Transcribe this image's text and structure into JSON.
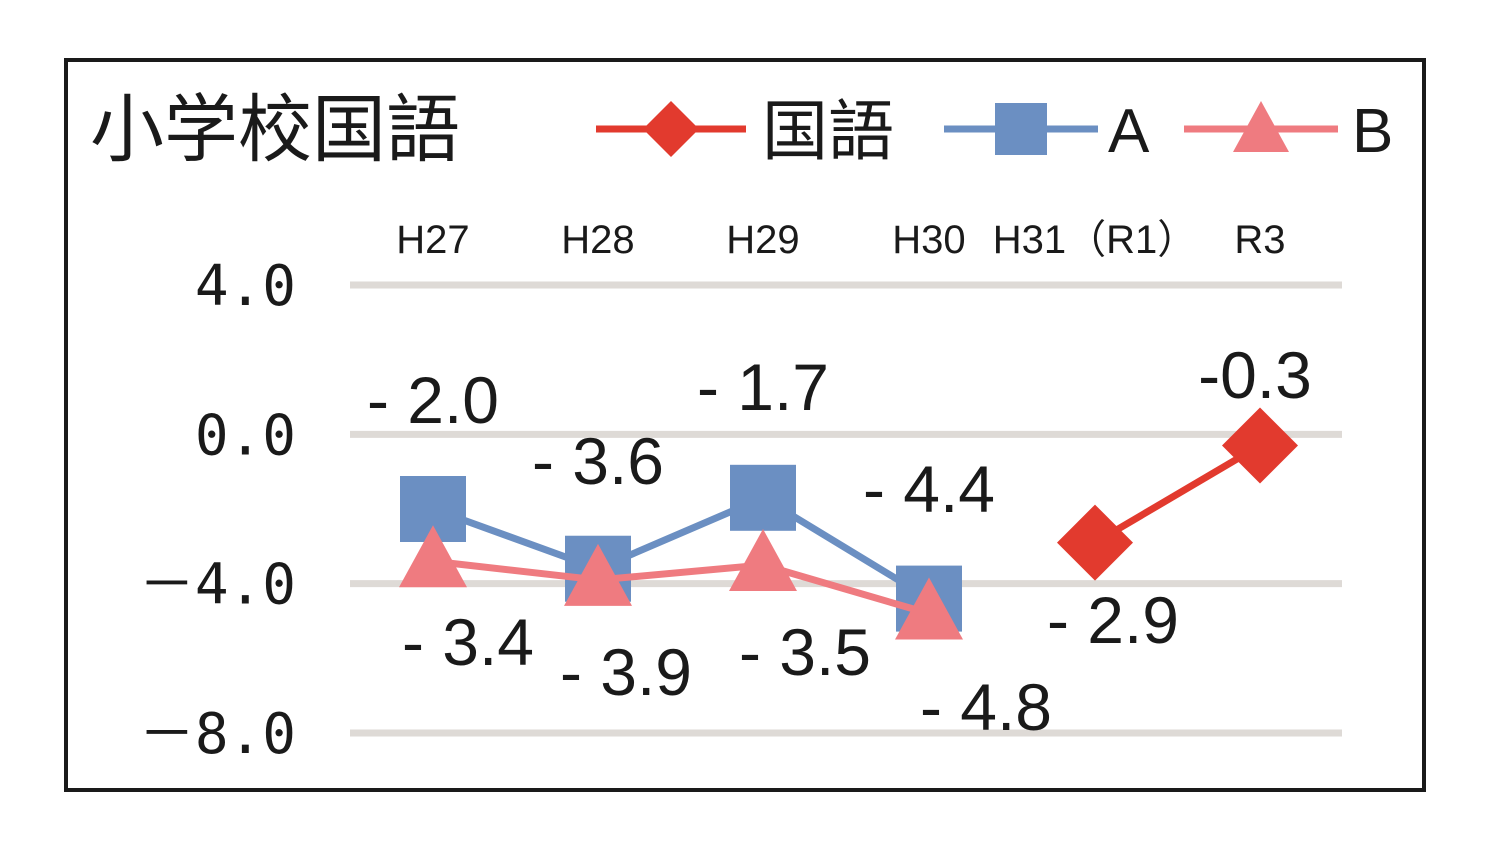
{
  "chart_data": {
    "type": "line",
    "title": "小学校国語",
    "categories": [
      "H27",
      "H28",
      "H29",
      "H30",
      "H31（R1）",
      "R3"
    ],
    "ylim": [
      -8.0,
      4.0
    ],
    "y_ticks": [
      4.0,
      0.0,
      -4.0,
      -8.0
    ],
    "y_tick_labels": [
      "4.0",
      "0.0",
      "－4.0",
      "－8.0"
    ],
    "grid": true,
    "legend_position": "top",
    "series": [
      {
        "name": "国語",
        "color": "#e23a2e",
        "marker": "diamond",
        "values": [
          null,
          null,
          null,
          null,
          -2.9,
          -0.3
        ],
        "labels": [
          "",
          "",
          "",
          "",
          "- 2.9",
          "-0.3"
        ]
      },
      {
        "name": "A",
        "color": "#6b8fc2",
        "marker": "square",
        "values": [
          -2.0,
          -3.6,
          -1.7,
          -4.4,
          null,
          null
        ],
        "labels": [
          "- 2.0",
          "- 3.6",
          "- 1.7",
          "- 4.4",
          "",
          ""
        ]
      },
      {
        "name": "B",
        "color": "#ef7b80",
        "marker": "triangle",
        "values": [
          -3.4,
          -3.9,
          -3.5,
          -4.8,
          null,
          null
        ],
        "labels": [
          "- 3.4",
          "- 3.9",
          "- 3.5",
          "- 4.8",
          "",
          ""
        ]
      }
    ]
  }
}
